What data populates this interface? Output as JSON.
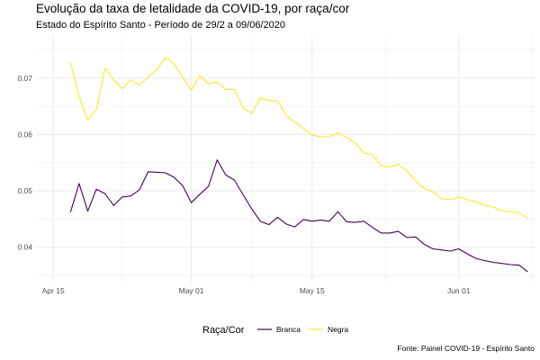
{
  "title": "Evolução da taxa de letalidade da COVID-19, por raça/cor",
  "subtitle": "Estado do Espírito Santo - Período de 29/2 a 09/06/2020",
  "caption": "Fonte: Painel COVID-19 - Espírito Santo",
  "chart_data": {
    "type": "line",
    "title": "Evolução da taxa de letalidade da COVID-19, por raça/cor",
    "subtitle": "Estado do Espírito Santo - Período de 29/2 a 09/06/2020",
    "xlabel": "",
    "ylabel": "",
    "x_tick_labels": [
      "Apr 15",
      "May 01",
      "May 15",
      "Jun 01"
    ],
    "x_tick_dates": [
      "2020-04-15",
      "2020-05-01",
      "2020-05-15",
      "2020-06-01"
    ],
    "y_ticks": [
      0.04,
      0.05,
      0.06,
      0.07
    ],
    "y_tick_labels": [
      "0.04",
      "0.05",
      "0.06",
      "0.07"
    ],
    "xlim": [
      "2020-04-13",
      "2020-06-10"
    ],
    "ylim": [
      0.0337,
      0.0775
    ],
    "grid": true,
    "legend": {
      "title": "Raça/Cor",
      "position": "bottom"
    },
    "x": [
      "2020-04-17",
      "2020-04-18",
      "2020-04-19",
      "2020-04-20",
      "2020-04-21",
      "2020-04-22",
      "2020-04-23",
      "2020-04-24",
      "2020-04-25",
      "2020-04-26",
      "2020-04-27",
      "2020-04-28",
      "2020-04-29",
      "2020-04-30",
      "2020-05-01",
      "2020-05-02",
      "2020-05-03",
      "2020-05-04",
      "2020-05-05",
      "2020-05-06",
      "2020-05-07",
      "2020-05-08",
      "2020-05-09",
      "2020-05-10",
      "2020-05-11",
      "2020-05-12",
      "2020-05-13",
      "2020-05-14",
      "2020-05-15",
      "2020-05-16",
      "2020-05-17",
      "2020-05-18",
      "2020-05-19",
      "2020-05-20",
      "2020-05-21",
      "2020-05-22",
      "2020-05-23",
      "2020-05-24",
      "2020-05-25",
      "2020-05-26",
      "2020-05-27",
      "2020-05-28",
      "2020-05-29",
      "2020-05-30",
      "2020-05-31",
      "2020-06-01",
      "2020-06-02",
      "2020-06-03",
      "2020-06-04",
      "2020-06-05",
      "2020-06-06",
      "2020-06-07",
      "2020-06-08",
      "2020-06-09"
    ],
    "series": [
      {
        "name": "Branca",
        "color": "#440154",
        "values": [
          0.0462,
          0.0513,
          0.0464,
          0.0503,
          0.0495,
          0.0474,
          0.0489,
          0.0491,
          0.0502,
          0.0534,
          0.0533,
          0.0532,
          0.0524,
          0.0509,
          0.0479,
          0.0494,
          0.0508,
          0.0555,
          0.0528,
          0.0519,
          0.0493,
          0.0468,
          0.0446,
          0.044,
          0.0453,
          0.0441,
          0.0436,
          0.0449,
          0.0446,
          0.0448,
          0.0446,
          0.0463,
          0.0445,
          0.0444,
          0.0446,
          0.0435,
          0.0425,
          0.0425,
          0.0428,
          0.0417,
          0.0418,
          0.0405,
          0.0397,
          0.0395,
          0.0393,
          0.0397,
          0.0388,
          0.038,
          0.0376,
          0.0373,
          0.0371,
          0.0369,
          0.0368,
          0.0356
        ]
      },
      {
        "name": "Negra",
        "color": "#FDE725",
        "values": [
          0.0728,
          0.0667,
          0.0626,
          0.0644,
          0.0718,
          0.0697,
          0.0681,
          0.0697,
          0.0688,
          0.0702,
          0.0715,
          0.0737,
          0.0726,
          0.0702,
          0.0679,
          0.0705,
          0.069,
          0.0693,
          0.068,
          0.068,
          0.0647,
          0.0638,
          0.0665,
          0.066,
          0.066,
          0.0634,
          0.0622,
          0.0611,
          0.0599,
          0.0596,
          0.0596,
          0.0603,
          0.0595,
          0.0585,
          0.0567,
          0.0564,
          0.0545,
          0.0542,
          0.0547,
          0.0535,
          0.0518,
          0.0504,
          0.0498,
          0.0486,
          0.0484,
          0.0489,
          0.0484,
          0.0481,
          0.0475,
          0.0471,
          0.0465,
          0.0463,
          0.0461,
          0.0451
        ]
      }
    ]
  }
}
